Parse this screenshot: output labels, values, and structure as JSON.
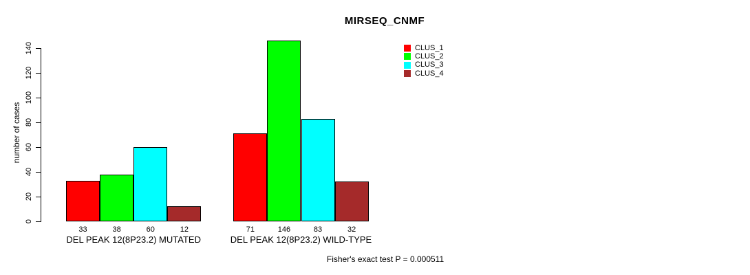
{
  "chart_data": {
    "type": "bar",
    "title": "MIRSEQ_CNMF",
    "ylabel": "number of cases",
    "xlabel": "",
    "ylim": [
      0,
      140
    ],
    "yticks": [
      0,
      20,
      40,
      60,
      80,
      100,
      120,
      140
    ],
    "grid": false,
    "legend_position": "right",
    "bar_value_labels_shown": true,
    "categories": [
      "DEL PEAK 12(8P23.2) MUTATED",
      "DEL PEAK 12(8P23.2) WILD-TYPE"
    ],
    "series": [
      {
        "name": "CLUS_1",
        "color": "#FF0000",
        "values": [
          33,
          71
        ]
      },
      {
        "name": "CLUS_2",
        "color": "#00FF00",
        "values": [
          38,
          146
        ]
      },
      {
        "name": "CLUS_3",
        "color": "#00FFFF",
        "values": [
          60,
          83
        ]
      },
      {
        "name": "CLUS_4",
        "color": "#A52A2A",
        "values": [
          12,
          32
        ]
      }
    ]
  },
  "footer": {
    "note": "Fisher's exact test P = 0.000511"
  },
  "colors": {
    "background": "#FFFFFF",
    "text": "#000000",
    "axis": "#000000"
  }
}
